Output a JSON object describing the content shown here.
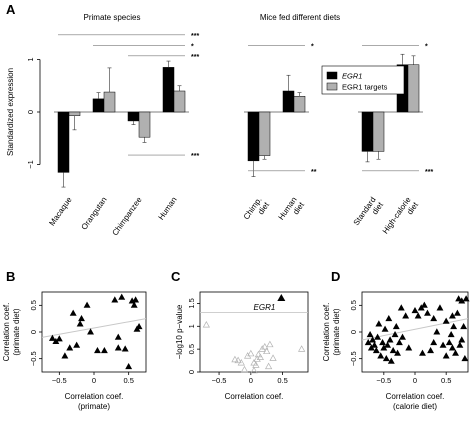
{
  "panels": {
    "a": "A",
    "b": "B",
    "c": "C",
    "d": "D"
  },
  "colors": {
    "egr1": "#000000",
    "targets": "#b0b0b0",
    "sig_line": "#777777",
    "trend": "#c8c8c8",
    "c_points": "#b3b3b3"
  },
  "chart_data": [
    {
      "id": "A",
      "type": "bar",
      "ylabel": "Standardized expression",
      "ylim": [
        -1.6,
        1.6
      ],
      "yticks": [
        -1,
        0,
        1
      ],
      "legend": {
        "placement": "center",
        "items": [
          {
            "label": "EGR1",
            "italic": true,
            "color": "#000000"
          },
          {
            "label": "EGR1 targets",
            "italic_prefix": "EGR1",
            "color": "#b0b0b0"
          }
        ]
      },
      "groups": [
        {
          "title": "Primate species",
          "categories": [
            "Macaque",
            "Orangutan",
            "Chimpanzee",
            "Human"
          ],
          "series": [
            {
              "name": "EGR1",
              "values": [
                -1.15,
                0.25,
                -0.17,
                0.85
              ],
              "err": [
                0.28,
                0.12,
                0.07,
                0.12
              ]
            },
            {
              "name": "EGR1 targets",
              "values": [
                -0.07,
                0.38,
                -0.48,
                0.4
              ],
              "err": [
                0.27,
                0.46,
                0.1,
                0.1
              ]
            }
          ],
          "sig": [
            {
              "from": 0,
              "to": 3,
              "y": 1.47,
              "label": "***"
            },
            {
              "from": 1,
              "to": 3,
              "y": 1.27,
              "label": "*"
            },
            {
              "from": 2,
              "to": 3,
              "y": 1.07,
              "label": "***"
            },
            {
              "from": 2,
              "to": 3,
              "y": -0.82,
              "label": "***"
            }
          ]
        },
        {
          "title": "Mice fed different diets",
          "categories": [
            "Chimp. diet",
            "Human diet"
          ],
          "series": [
            {
              "name": "EGR1",
              "values": [
                -0.93,
                0.4
              ],
              "err": [
                0.3,
                0.3
              ]
            },
            {
              "name": "EGR1 targets",
              "values": [
                -0.83,
                0.3
              ],
              "err": [
                0.07,
                0.07
              ]
            }
          ],
          "sig": [
            {
              "from": 0,
              "to": 1,
              "y": 1.27,
              "label": "*"
            },
            {
              "from": 0,
              "to": 1,
              "y": -1.12,
              "label": "**"
            }
          ]
        },
        {
          "title": "",
          "categories": [
            "Standard diet",
            "High-calorie diet"
          ],
          "series": [
            {
              "name": "EGR1",
              "values": [
                -0.75,
                0.9
              ],
              "err": [
                0.2,
                0.2
              ]
            },
            {
              "name": "EGR1 targets",
              "values": [
                -0.75,
                0.9
              ],
              "err": [
                0.15,
                0.17
              ]
            }
          ],
          "sig": [
            {
              "from": 0,
              "to": 1,
              "y": 1.27,
              "label": "*"
            },
            {
              "from": 0,
              "to": 1,
              "y": -1.12,
              "label": "***"
            }
          ]
        }
      ]
    },
    {
      "id": "B",
      "type": "scatter",
      "xlabel": [
        "Correlation coef.",
        "(primate)"
      ],
      "ylabel": [
        "Correlation coef.",
        "(primate diet)"
      ],
      "xlim": [
        -0.75,
        0.75
      ],
      "ylim": [
        -0.75,
        0.75
      ],
      "xticks": [
        -0.5,
        0,
        0.5
      ],
      "yticks": [
        -0.5,
        0,
        0.5
      ],
      "trend": {
        "from": [
          -0.75,
          -0.1
        ],
        "to": [
          0.75,
          0.25
        ]
      },
      "points": [
        [
          -0.6,
          -0.12
        ],
        [
          -0.55,
          -0.18
        ],
        [
          -0.5,
          -0.13
        ],
        [
          -0.42,
          -0.45
        ],
        [
          -0.35,
          -0.3
        ],
        [
          -0.3,
          0.35
        ],
        [
          -0.25,
          -0.25
        ],
        [
          -0.2,
          0.15
        ],
        [
          -0.18,
          0.25
        ],
        [
          -0.1,
          0.5
        ],
        [
          -0.05,
          0.0
        ],
        [
          0.05,
          -0.35
        ],
        [
          0.15,
          -0.35
        ],
        [
          0.3,
          0.6
        ],
        [
          0.35,
          -0.3
        ],
        [
          0.4,
          0.65
        ],
        [
          0.45,
          -0.32
        ],
        [
          0.5,
          -0.65
        ],
        [
          0.55,
          0.58
        ],
        [
          0.58,
          0.5
        ],
        [
          0.6,
          0.6
        ],
        [
          0.62,
          0.05
        ],
        [
          0.35,
          -0.1
        ],
        [
          0.65,
          0.1
        ]
      ]
    },
    {
      "id": "C",
      "type": "scatter",
      "xlabel": [
        "Correlation coef."
      ],
      "ylabel": [
        "−log10 p−value"
      ],
      "xlim": [
        -0.8,
        0.9
      ],
      "ylim": [
        0,
        1.75
      ],
      "xticks": [
        -0.5,
        0,
        0.5
      ],
      "yticks": [
        0,
        0.5,
        1,
        1.5
      ],
      "threshold": 1.3,
      "highlight": {
        "label": "EGR1",
        "x": 0.48,
        "y": 1.62
      },
      "points": [
        [
          -0.7,
          1.03
        ],
        [
          -0.25,
          0.27
        ],
        [
          -0.2,
          0.25
        ],
        [
          -0.15,
          0.2
        ],
        [
          -0.05,
          0.35
        ],
        [
          0.0,
          0.4
        ],
        [
          0.05,
          0.2
        ],
        [
          0.08,
          0.15
        ],
        [
          0.1,
          0.28
        ],
        [
          0.12,
          0.38
        ],
        [
          0.15,
          0.32
        ],
        [
          0.18,
          0.5
        ],
        [
          0.22,
          0.55
        ],
        [
          0.25,
          0.45
        ],
        [
          0.28,
          0.12
        ],
        [
          0.3,
          0.6
        ],
        [
          0.8,
          0.5
        ],
        [
          0.05,
          0.03
        ],
        [
          -0.1,
          0.05
        ],
        [
          0.35,
          0.3
        ]
      ]
    },
    {
      "id": "D",
      "type": "scatter",
      "xlabel": [
        "Correlation coef.",
        "(calorie diet)"
      ],
      "ylabel": [
        "Correlation coef.",
        "(primate diet)"
      ],
      "xlim": [
        -0.85,
        0.85
      ],
      "ylim": [
        -0.75,
        0.75
      ],
      "xticks": [
        -0.5,
        0,
        0.5
      ],
      "yticks": [
        -0.5,
        0,
        0.5
      ],
      "trend": {
        "from": [
          -0.85,
          -0.15
        ],
        "to": [
          0.85,
          0.25
        ]
      },
      "points": [
        [
          -0.75,
          -0.2
        ],
        [
          -0.72,
          -0.05
        ],
        [
          -0.7,
          -0.3
        ],
        [
          -0.68,
          -0.15
        ],
        [
          -0.65,
          -0.25
        ],
        [
          -0.62,
          -0.35
        ],
        [
          -0.6,
          -0.1
        ],
        [
          -0.58,
          0.15
        ],
        [
          -0.55,
          -0.45
        ],
        [
          -0.52,
          -0.2
        ],
        [
          -0.5,
          -0.3
        ],
        [
          -0.48,
          0.05
        ],
        [
          -0.46,
          -0.5
        ],
        [
          -0.44,
          -0.25
        ],
        [
          -0.42,
          0.25
        ],
        [
          -0.4,
          -0.15
        ],
        [
          -0.38,
          -0.55
        ],
        [
          -0.35,
          -0.35
        ],
        [
          -0.32,
          -0.05
        ],
        [
          -0.3,
          0.1
        ],
        [
          -0.28,
          -0.4
        ],
        [
          -0.25,
          -0.2
        ],
        [
          -0.22,
          0.45
        ],
        [
          -0.2,
          -0.1
        ],
        [
          -0.15,
          0.3
        ],
        [
          -0.1,
          -0.3
        ],
        [
          0.0,
          0.4
        ],
        [
          0.05,
          0.3
        ],
        [
          0.1,
          0.45
        ],
        [
          0.12,
          -0.4
        ],
        [
          0.15,
          0.5
        ],
        [
          0.2,
          0.35
        ],
        [
          0.25,
          -0.35
        ],
        [
          0.3,
          -0.2
        ],
        [
          0.35,
          0.0
        ],
        [
          0.4,
          0.45
        ],
        [
          0.45,
          -0.25
        ],
        [
          0.5,
          -0.45
        ],
        [
          0.55,
          -0.2
        ],
        [
          0.58,
          -0.05
        ],
        [
          0.6,
          -0.3
        ],
        [
          0.62,
          0.1
        ],
        [
          0.65,
          -0.4
        ],
        [
          0.68,
          0.35
        ],
        [
          0.7,
          0.62
        ],
        [
          0.72,
          -0.25
        ],
        [
          0.75,
          0.58
        ],
        [
          0.78,
          0.1
        ],
        [
          0.8,
          -0.5
        ],
        [
          0.82,
          0.62
        ],
        [
          0.5,
          0.2
        ],
        [
          0.3,
          0.25
        ],
        [
          0.6,
          0.3
        ],
        [
          0.75,
          -0.15
        ]
      ]
    }
  ]
}
